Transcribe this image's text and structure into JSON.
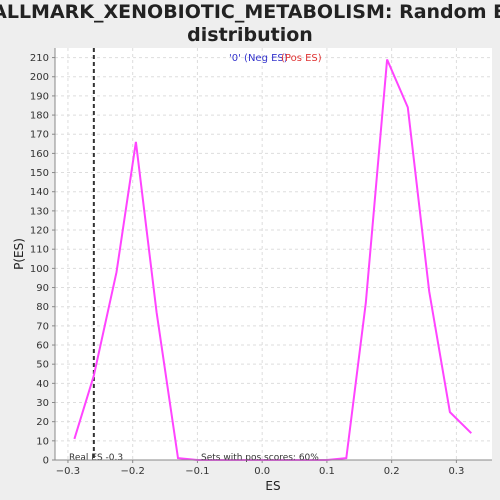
{
  "title_line1": "HALLMARK_XENOBIOTIC_METABOLISM: Random ES",
  "title_line2": "distribution",
  "legend": {
    "neg_label": "'0' (Neg ES)",
    "pos_label": "(Pos ES)",
    "neg_color": "#3333cc",
    "pos_color": "#e03333"
  },
  "annotations": {
    "real_es": "Real ES -0.3",
    "pos_scores": "Sets with pos scores: 60%"
  },
  "colors": {
    "line": "#ff44ff",
    "marker": "#333333",
    "grid": "#dddddd",
    "plot_bg": "#ffffff",
    "page_bg": "#eeeeee"
  },
  "chart_data": {
    "type": "line",
    "title": "HALLMARK_XENOBIOTIC_METABOLISM: Random ES distribution",
    "xlabel": "ES",
    "ylabel": "P(ES)",
    "xlim": [
      -0.32,
      0.355
    ],
    "ylim": [
      0,
      215
    ],
    "xticks": [
      -0.3,
      -0.2,
      -0.1,
      0.0,
      0.1,
      0.2,
      0.3
    ],
    "xtick_labels": [
      "−0.3",
      "−0.2",
      "−0.1",
      "0.0",
      "0.1",
      "0.2",
      "0.3"
    ],
    "yticks": [
      0,
      10,
      20,
      30,
      40,
      50,
      60,
      70,
      80,
      90,
      100,
      110,
      120,
      130,
      140,
      150,
      160,
      170,
      180,
      190,
      200,
      210
    ],
    "grid": true,
    "real_es": -0.26,
    "series": [
      {
        "x": [
          -0.29,
          -0.26,
          -0.225,
          -0.195,
          -0.163,
          -0.13,
          -0.1,
          -0.065,
          -0.03,
          0.0,
          0.03,
          0.065,
          0.1,
          0.13,
          0.16,
          0.193,
          0.225,
          0.258,
          0.29,
          0.323
        ],
        "y": [
          11,
          44,
          98,
          166,
          77,
          1,
          0,
          0,
          0,
          0,
          0,
          0,
          0,
          1,
          82,
          209,
          184,
          88,
          25,
          14
        ]
      }
    ]
  }
}
